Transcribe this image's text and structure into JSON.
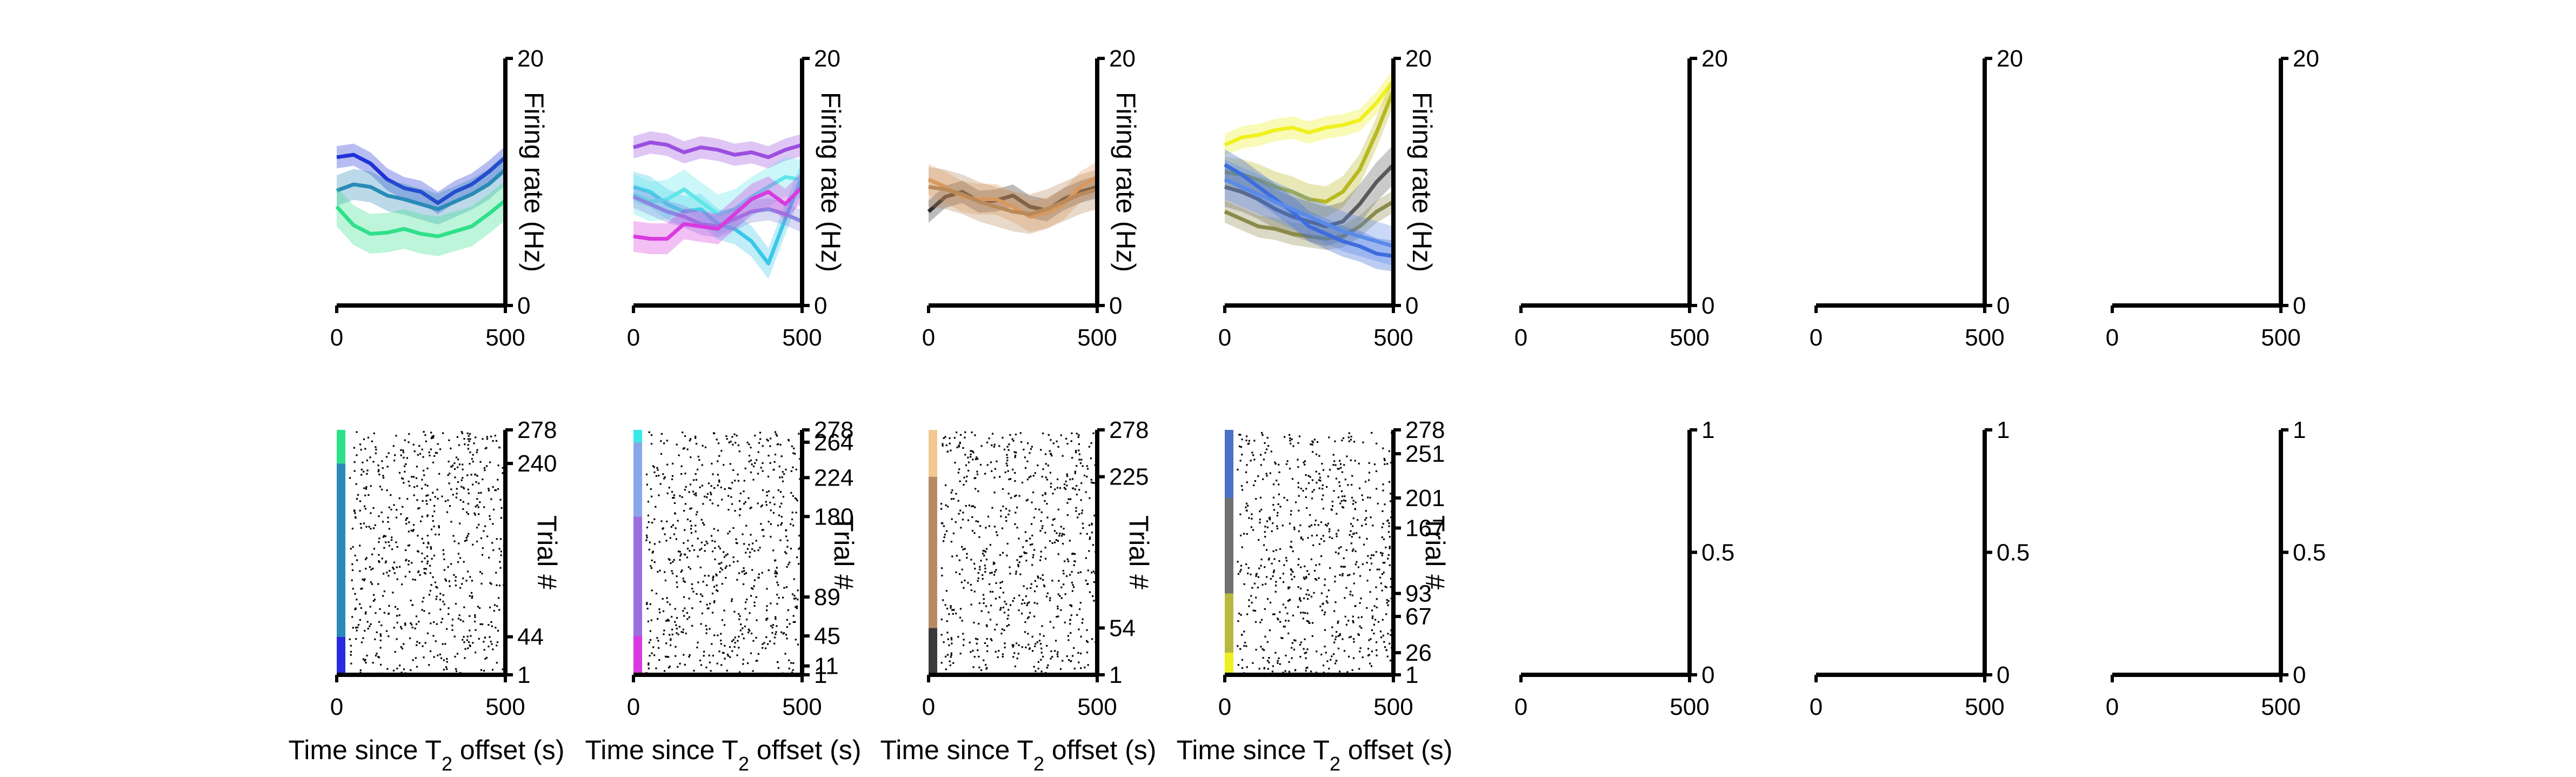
{
  "figure": {
    "xlabel_main": "Time since T",
    "xlabel_sub": "2",
    "xlabel_tail": " offset (s)",
    "firing_ylabel": "Firing rate (Hz)",
    "raster_ylabel": "Trial #"
  },
  "chart_data": [
    {
      "type": "line",
      "panel": "firing-1",
      "xlim": [
        0,
        500
      ],
      "ylim": [
        0,
        20
      ],
      "xticks": [
        "0",
        "500"
      ],
      "yticks": [
        "0",
        "20"
      ],
      "ylabel": "Firing rate (Hz)",
      "x": [
        0,
        50,
        100,
        150,
        200,
        250,
        300,
        350,
        400,
        450,
        500
      ],
      "series": [
        {
          "color": "#1f32d6",
          "values": [
            12,
            12.2,
            11.5,
            10.2,
            9.5,
            9.2,
            8.3,
            9.2,
            9.8,
            10.8,
            12
          ]
        },
        {
          "color": "#2a8ab8",
          "values": [
            9.3,
            9.8,
            9.6,
            8.9,
            8.6,
            8.2,
            7.8,
            8.4,
            9.0,
            9.8,
            11
          ]
        },
        {
          "color": "#2fe08a",
          "values": [
            8,
            6.5,
            5.8,
            5.9,
            6.2,
            5.8,
            5.6,
            6.0,
            6.4,
            7.4,
            8.5
          ]
        }
      ]
    },
    {
      "type": "line",
      "panel": "firing-2",
      "xlim": [
        0,
        500
      ],
      "ylim": [
        0,
        20
      ],
      "xticks": [
        "0",
        "500"
      ],
      "yticks": [
        "0",
        "20"
      ],
      "ylabel": "Firing rate (Hz)",
      "x": [
        0,
        50,
        100,
        150,
        200,
        250,
        300,
        350,
        400,
        450,
        500
      ],
      "series": [
        {
          "color": "#9b4fe0",
          "values": [
            12.8,
            13.2,
            13.0,
            12.4,
            12.8,
            12.6,
            12.2,
            12.4,
            12.0,
            12.6,
            13.0
          ]
        },
        {
          "color": "#3ac8e8",
          "values": [
            9.6,
            9.2,
            8.2,
            7.6,
            7.8,
            6.6,
            6.2,
            5.2,
            3.4,
            7.0,
            10.5
          ]
        },
        {
          "color": "#5fe6ea",
          "values": [
            9.0,
            8.4,
            8.6,
            9.4,
            8.4,
            7.4,
            7.8,
            8.8,
            9.6,
            10.4,
            10.2
          ]
        },
        {
          "color": "#8888e0",
          "values": [
            8.8,
            8.2,
            7.6,
            7.2,
            6.6,
            6.4,
            7.0,
            7.6,
            7.8,
            7.4,
            6.8
          ]
        },
        {
          "color": "#d83ae0",
          "values": [
            5.6,
            5.4,
            5.4,
            6.6,
            6.4,
            6.2,
            7.4,
            8.6,
            9.2,
            8.2,
            9.6
          ]
        }
      ]
    },
    {
      "type": "line",
      "panel": "firing-3",
      "xlim": [
        0,
        500
      ],
      "ylim": [
        0,
        20
      ],
      "xticks": [
        "0",
        "500"
      ],
      "yticks": [
        "0",
        "20"
      ],
      "ylabel": "Firing rate (Hz)",
      "x": [
        0,
        50,
        100,
        150,
        200,
        250,
        300,
        350,
        400,
        450,
        500
      ],
      "series": [
        {
          "color": "#2f2f2f",
          "values": [
            7.6,
            8.8,
            9.2,
            8.4,
            8.5,
            8.9,
            8.0,
            7.7,
            8.6,
            9.2,
            9.6
          ]
        },
        {
          "color": "#e8a060",
          "values": [
            10.2,
            9.6,
            8.8,
            8.6,
            8.6,
            8.0,
            7.2,
            7.5,
            8.2,
            9.6,
            10.4
          ]
        },
        {
          "color": "#b98a5a",
          "values": [
            9.6,
            9.4,
            9.0,
            8.4,
            8.0,
            7.6,
            7.4,
            7.8,
            8.4,
            9.0,
            9.4
          ]
        }
      ]
    },
    {
      "type": "line",
      "panel": "firing-4",
      "xlim": [
        0,
        500
      ],
      "ylim": [
        0,
        20
      ],
      "xticks": [
        "0",
        "500"
      ],
      "yticks": [
        "0",
        "20"
      ],
      "ylabel": "Firing rate (Hz)",
      "x": [
        0,
        50,
        100,
        150,
        200,
        250,
        300,
        350,
        400,
        450,
        500
      ],
      "series": [
        {
          "color": "#f0f020",
          "values": [
            13.0,
            13.6,
            13.8,
            14.2,
            14.4,
            14.0,
            14.4,
            14.6,
            15.0,
            16.4,
            18.2
          ]
        },
        {
          "color": "#b8b820",
          "values": [
            10.8,
            10.6,
            10.2,
            9.6,
            9.2,
            8.6,
            8.4,
            9.2,
            11.0,
            14.0,
            17.4
          ]
        },
        {
          "color": "#5a5a5a",
          "values": [
            9.6,
            9.2,
            8.6,
            7.8,
            7.2,
            6.8,
            6.4,
            6.8,
            8.2,
            10.0,
            11.4
          ]
        },
        {
          "color": "#8a8a4a",
          "values": [
            7.6,
            7.0,
            6.4,
            6.2,
            5.8,
            5.6,
            5.4,
            5.6,
            6.4,
            7.6,
            8.4
          ]
        },
        {
          "color": "#3060d8",
          "values": [
            11.4,
            10.6,
            9.6,
            8.6,
            7.6,
            6.4,
            5.8,
            5.2,
            4.8,
            4.2,
            4.0
          ]
        },
        {
          "color": "#5a8ae8",
          "values": [
            10.2,
            9.6,
            9.0,
            8.4,
            7.8,
            7.2,
            6.6,
            6.0,
            5.6,
            5.2,
            4.8
          ]
        }
      ]
    },
    {
      "type": "line",
      "panel": "firing-5",
      "xlim": [
        0,
        500
      ],
      "ylim": [
        0,
        20
      ],
      "xticks": [
        "0",
        "500"
      ],
      "yticks": [
        "0",
        "20"
      ],
      "series": []
    },
    {
      "type": "line",
      "panel": "firing-6",
      "xlim": [
        0,
        500
      ],
      "ylim": [
        0,
        20
      ],
      "xticks": [
        "0",
        "500"
      ],
      "yticks": [
        "0",
        "20"
      ],
      "series": []
    },
    {
      "type": "line",
      "panel": "firing-7",
      "xlim": [
        0,
        500
      ],
      "ylim": [
        0,
        20
      ],
      "xticks": [
        "0",
        "500"
      ],
      "yticks": [
        "0",
        "20"
      ],
      "series": []
    },
    {
      "type": "scatter",
      "panel": "raster-1",
      "xlim": [
        0,
        500
      ],
      "ylim": [
        1,
        278
      ],
      "xticks": [
        "0",
        "500"
      ],
      "yticks": [
        "1",
        "44",
        "240",
        "278"
      ],
      "ylabel": "Trial #",
      "xlabel": "Time since T2 offset (s)",
      "trial_groups": [
        {
          "color": "#2a2ae0",
          "from": 1,
          "to": 44
        },
        {
          "color": "#2a8ab8",
          "from": 44,
          "to": 240
        },
        {
          "color": "#2fe08a",
          "from": 240,
          "to": 278
        }
      ]
    },
    {
      "type": "scatter",
      "panel": "raster-2",
      "xlim": [
        0,
        500
      ],
      "ylim": [
        1,
        278
      ],
      "xticks": [
        "0",
        "500"
      ],
      "yticks": [
        "1",
        "11",
        "45",
        "89",
        "180",
        "224",
        "264",
        "278"
      ],
      "ylabel": "Trial #",
      "xlabel": "Time since T2 offset (s)",
      "trial_groups": [
        {
          "color": "#d83ae0",
          "from": 1,
          "to": 45
        },
        {
          "color": "#9b6fe0",
          "from": 45,
          "to": 180
        },
        {
          "color": "#8aa8e8",
          "from": 180,
          "to": 264
        },
        {
          "color": "#3ae8e8",
          "from": 264,
          "to": 278
        }
      ]
    },
    {
      "type": "scatter",
      "panel": "raster-3",
      "xlim": [
        0,
        500
      ],
      "ylim": [
        1,
        278
      ],
      "xticks": [
        "0",
        "500"
      ],
      "yticks": [
        "1",
        "54",
        "225",
        "278"
      ],
      "ylabel": "Trial #",
      "xlabel": "Time since T2 offset (s)",
      "trial_groups": [
        {
          "color": "#3a3a3a",
          "from": 1,
          "to": 54
        },
        {
          "color": "#b88a64",
          "from": 54,
          "to": 225
        },
        {
          "color": "#f0c890",
          "from": 225,
          "to": 278
        }
      ]
    },
    {
      "type": "scatter",
      "panel": "raster-4",
      "xlim": [
        0,
        500
      ],
      "ylim": [
        1,
        278
      ],
      "xticks": [
        "0",
        "500"
      ],
      "yticks": [
        "1",
        "26",
        "67",
        "93",
        "167",
        "201",
        "251",
        "278"
      ],
      "ylabel": "Trial #",
      "xlabel": "Time since T2 offset (s)",
      "trial_groups": [
        {
          "color": "#f0f020",
          "from": 1,
          "to": 26
        },
        {
          "color": "#b8b840",
          "from": 26,
          "to": 93
        },
        {
          "color": "#707070",
          "from": 93,
          "to": 201
        },
        {
          "color": "#4a70c8",
          "from": 201,
          "to": 278
        }
      ]
    },
    {
      "type": "scatter",
      "panel": "raster-5",
      "xlim": [
        0,
        500
      ],
      "ylim": [
        0,
        1
      ],
      "xticks": [
        "0",
        "500"
      ],
      "yticks": [
        "0",
        "0.5",
        "1"
      ]
    },
    {
      "type": "scatter",
      "panel": "raster-6",
      "xlim": [
        0,
        500
      ],
      "ylim": [
        0,
        1
      ],
      "xticks": [
        "0",
        "500"
      ],
      "yticks": [
        "0",
        "0.5",
        "1"
      ]
    },
    {
      "type": "scatter",
      "panel": "raster-7",
      "xlim": [
        0,
        500
      ],
      "ylim": [
        0,
        1
      ],
      "xticks": [
        "0",
        "500"
      ],
      "yticks": [
        "0",
        "0.5",
        "1"
      ]
    }
  ]
}
